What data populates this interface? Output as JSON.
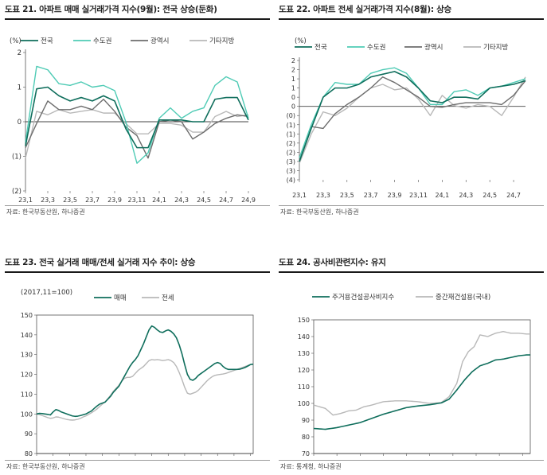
{
  "colors": {
    "green": "#0f6e5c",
    "mint": "#4fcbb5",
    "darkgray": "#6d6d6d",
    "lightgray": "#b8b8b8"
  },
  "chart_data": [
    {
      "id": "c21",
      "type": "line",
      "title": "도표 21. 아파트 매매 실거래가격 지수(9월): 전국 상승(둔화)",
      "unit_label": "(%)",
      "source": "자료: 한국부동산원, 하나증권",
      "ylim": [
        -2,
        2
      ],
      "yticks": [
        2,
        1,
        0,
        -1,
        -2
      ],
      "ytick_labels": [
        "2",
        "1",
        "0",
        "(1)",
        "(2)"
      ],
      "x_count": 21,
      "xtick_labels": [
        {
          "i": 0,
          "label": "23,1"
        },
        {
          "i": 2,
          "label": "23,3"
        },
        {
          "i": 4,
          "label": "23,5"
        },
        {
          "i": 6,
          "label": "23,7"
        },
        {
          "i": 8,
          "label": "23,9"
        },
        {
          "i": 10,
          "label": "23,11"
        },
        {
          "i": 12,
          "label": "24,1"
        },
        {
          "i": 14,
          "label": "24,3"
        },
        {
          "i": 16,
          "label": "24,5"
        },
        {
          "i": 18,
          "label": "24,7"
        },
        {
          "i": 20,
          "label": "24,9"
        }
      ],
      "series": [
        {
          "name": "전국",
          "color": "#0f6e5c",
          "values": [
            -0.7,
            0.95,
            1.0,
            0.75,
            0.6,
            0.7,
            0.6,
            0.75,
            0.6,
            -0.2,
            -0.75,
            -0.75,
            0.05,
            0.05,
            0.05,
            0.0,
            0.0,
            0.65,
            0.7,
            0.7,
            0.05
          ]
        },
        {
          "name": "수도권",
          "color": "#4fcbb5",
          "values": [
            -0.6,
            1.6,
            1.5,
            1.1,
            1.05,
            1.15,
            1.0,
            1.05,
            0.9,
            0.0,
            -1.2,
            -0.9,
            0.1,
            0.4,
            0.1,
            0.3,
            0.4,
            1.05,
            1.3,
            1.15,
            0.1
          ]
        },
        {
          "name": "광역시",
          "color": "#6d6d6d",
          "values": [
            -0.75,
            -0.05,
            0.6,
            0.35,
            0.35,
            0.45,
            0.35,
            0.65,
            0.3,
            -0.15,
            -0.4,
            -1.05,
            0.0,
            0.05,
            0.0,
            -0.5,
            -0.3,
            -0.05,
            0.1,
            0.2,
            0.15
          ]
        },
        {
          "name": "기타지방",
          "color": "#b8b8b8",
          "values": [
            -1.05,
            0.3,
            0.2,
            0.35,
            0.25,
            0.3,
            0.35,
            0.25,
            0.25,
            -0.05,
            -0.35,
            -0.35,
            -0.05,
            -0.05,
            -0.1,
            -0.3,
            -0.3,
            0.15,
            0.3,
            0.15,
            0.2
          ]
        }
      ]
    },
    {
      "id": "c22",
      "type": "line",
      "title": "도표 22. 아파트 전세 실거래가격 지수(8월): 상승",
      "unit_label": "(%)",
      "source": "자료: 한국부동산원, 하나증권",
      "ylim": [
        -4,
        2.5
      ],
      "yticks": [
        2.5,
        2,
        1.5,
        1,
        0.5,
        0,
        -0.5,
        -1,
        -1.5,
        -2,
        -2.5,
        -3,
        -3.5,
        -4
      ],
      "ytick_labels": [
        "2",
        "2",
        "1",
        "1",
        "0",
        "0",
        "(0)",
        "(1)",
        "(1)",
        "(2)",
        "(2)",
        "(3)",
        "(3)",
        "(4)"
      ],
      "x_count": 20,
      "xtick_labels": [
        {
          "i": 0,
          "label": "23,1"
        },
        {
          "i": 2,
          "label": "23,3"
        },
        {
          "i": 4,
          "label": "23,5"
        },
        {
          "i": 6,
          "label": "23,7"
        },
        {
          "i": 8,
          "label": "23,9"
        },
        {
          "i": 10,
          "label": "23,11"
        },
        {
          "i": 12,
          "label": "24,1"
        },
        {
          "i": 14,
          "label": "24,3"
        },
        {
          "i": 16,
          "label": "24,5"
        },
        {
          "i": 18,
          "label": "24,7"
        }
      ],
      "series": [
        {
          "name": "전국",
          "color": "#0f6e5c",
          "values": [
            -3.0,
            -1.2,
            0.5,
            1.0,
            1.0,
            1.2,
            1.6,
            1.75,
            1.9,
            1.6,
            1.0,
            0.3,
            0.2,
            0.5,
            0.5,
            0.4,
            1.0,
            1.1,
            1.2,
            1.4
          ]
        },
        {
          "name": "수도권",
          "color": "#4fcbb5",
          "values": [
            -2.8,
            -1.0,
            0.5,
            1.3,
            1.2,
            1.2,
            1.8,
            2.0,
            2.1,
            1.8,
            1.0,
            0.1,
            0.1,
            0.8,
            0.9,
            0.6,
            1.0,
            1.1,
            1.3,
            1.5
          ]
        },
        {
          "name": "광역시",
          "color": "#6d6d6d",
          "values": [
            -3.0,
            -1.1,
            -1.2,
            -0.4,
            0.1,
            0.5,
            1.0,
            1.6,
            1.3,
            0.9,
            0.5,
            0.0,
            -0.05,
            0.1,
            0.2,
            0.2,
            0.2,
            0.1,
            0.6,
            1.4
          ]
        },
        {
          "name": "기타지방",
          "color": "#b8b8b8",
          "values": [
            -3.1,
            -1.5,
            -0.3,
            -0.5,
            -0.1,
            0.5,
            1.0,
            1.2,
            0.9,
            1.0,
            0.4,
            -0.5,
            0.6,
            0.05,
            -0.1,
            0.1,
            0.0,
            -0.5,
            0.5,
            1.6
          ]
        }
      ]
    },
    {
      "id": "c23",
      "type": "line",
      "title": "도표 23. 전국 실거래 매매/전세 실거래 지수 추이: 상승",
      "unit_label": "(2017,11=100)",
      "source": "자료: 한국부동산원, 하나증권",
      "ylim": [
        80,
        150
      ],
      "yticks": [
        150,
        140,
        130,
        120,
        110,
        100,
        90,
        80
      ],
      "ytick_labels": [
        "150",
        "140",
        "130",
        "120",
        "110",
        "100",
        "90",
        "80"
      ],
      "x_count": 80,
      "xtick_labels": [
        {
          "i": 0,
          "label": "18,1"
        },
        {
          "i": 6,
          "label": "18,7"
        },
        {
          "i": 12,
          "label": "19,1"
        },
        {
          "i": 18,
          "label": "19,7"
        },
        {
          "i": 24,
          "label": "20,1"
        },
        {
          "i": 30,
          "label": "20,7"
        },
        {
          "i": 36,
          "label": "21,1"
        },
        {
          "i": 42,
          "label": "21,7"
        },
        {
          "i": 48,
          "label": "22,1"
        },
        {
          "i": 54,
          "label": "22,7"
        },
        {
          "i": 60,
          "label": "23,1"
        },
        {
          "i": 66,
          "label": "23,7"
        },
        {
          "i": 72,
          "label": "24,1"
        },
        {
          "i": 78,
          "label": "24,7"
        }
      ],
      "series": [
        {
          "name": "매매",
          "color": "#0f6e5c",
          "values": [
            100.0,
            100.3,
            100.2,
            100.0,
            99.8,
            99.5,
            101.0,
            102.2,
            101.8,
            101.0,
            100.5,
            100.0,
            99.5,
            99.0,
            98.8,
            98.9,
            99.2,
            99.6,
            100.0,
            100.8,
            101.5,
            102.8,
            104.0,
            105.0,
            105.5,
            106.0,
            107.5,
            109.0,
            111.0,
            112.5,
            114.0,
            116.5,
            119.0,
            121.5,
            124.0,
            126.0,
            127.5,
            129.5,
            132.5,
            135.5,
            139.0,
            142.5,
            144.5,
            143.8,
            142.5,
            141.5,
            141.2,
            142.0,
            142.5,
            141.8,
            140.5,
            138.5,
            135.0,
            130.5,
            125.0,
            120.0,
            117.5,
            117.0,
            118.0,
            119.5,
            120.5,
            121.5,
            122.5,
            123.5,
            124.5,
            125.5,
            126.0,
            125.5,
            124.0,
            123.0,
            122.5,
            122.5,
            122.5,
            122.5,
            122.6,
            123.0,
            123.5,
            124.2,
            125.0,
            125.2
          ]
        },
        {
          "name": "전세",
          "color": "#b8b8b8",
          "values": [
            100.0,
            99.7,
            99.2,
            98.7,
            98.2,
            97.8,
            98.0,
            98.5,
            98.4,
            98.0,
            97.6,
            97.2,
            97.0,
            96.9,
            97.0,
            97.3,
            97.8,
            98.5,
            99.0,
            99.8,
            100.6,
            101.5,
            102.5,
            103.8,
            105.0,
            106.2,
            107.8,
            109.5,
            111.5,
            113.0,
            114.5,
            116.5,
            118.0,
            118.5,
            118.5,
            119.0,
            120.5,
            122.0,
            123.0,
            124.0,
            125.5,
            127.0,
            127.5,
            127.3,
            127.5,
            127.3,
            127.0,
            127.2,
            127.5,
            127.0,
            126.0,
            124.0,
            121.0,
            117.5,
            113.5,
            110.5,
            110.0,
            110.5,
            111.0,
            112.0,
            113.5,
            115.0,
            116.5,
            117.8,
            118.8,
            119.5,
            119.8,
            120.0,
            120.2,
            120.5,
            121.0,
            121.5,
            122.0,
            122.5,
            123.0,
            123.5,
            124.0,
            124.5,
            125.0,
            125.2
          ]
        }
      ]
    },
    {
      "id": "c24",
      "type": "line",
      "title": "도표 24. 공사비관련지수: 유지",
      "unit_label": "",
      "source": "자료: 통계청, 하나증권",
      "ylim": [
        70,
        150
      ],
      "yticks": [
        150,
        140,
        130,
        120,
        110,
        100,
        90,
        80,
        70
      ],
      "ytick_labels": [
        "150",
        "140",
        "130",
        "120",
        "110",
        "100",
        "90",
        "80",
        "70"
      ],
      "x_count": 113,
      "xtick_labels": [
        {
          "i": 0,
          "label": "15,1"
        },
        {
          "i": 12,
          "label": "16,1"
        },
        {
          "i": 24,
          "label": "17,1"
        },
        {
          "i": 36,
          "label": "18,1"
        },
        {
          "i": 48,
          "label": "19,1"
        },
        {
          "i": 60,
          "label": "20,1"
        },
        {
          "i": 72,
          "label": "21,1"
        },
        {
          "i": 84,
          "label": "22,1"
        },
        {
          "i": 96,
          "label": "23,1"
        },
        {
          "i": 108,
          "label": "24,1"
        }
      ],
      "series": [
        {
          "name": "주거용건설공사비지수",
          "color": "#0f6e5c",
          "keypoints": [
            [
              0,
              85
            ],
            [
              6,
              84.5
            ],
            [
              12,
              85.5
            ],
            [
              18,
              87
            ],
            [
              24,
              88.5
            ],
            [
              30,
              91
            ],
            [
              36,
              93.5
            ],
            [
              42,
              95.5
            ],
            [
              48,
              97.5
            ],
            [
              54,
              98.5
            ],
            [
              60,
              99.2
            ],
            [
              66,
              100.3
            ],
            [
              70,
              102.5
            ],
            [
              74,
              108
            ],
            [
              78,
              114
            ],
            [
              82,
              119
            ],
            [
              86,
              122.5
            ],
            [
              90,
              124
            ],
            [
              94,
              126
            ],
            [
              98,
              126.5
            ],
            [
              102,
              127.5
            ],
            [
              106,
              128.5
            ],
            [
              110,
              129
            ],
            [
              112,
              129
            ]
          ]
        },
        {
          "name": "중간재건설용(국내)",
          "color": "#b8b8b8",
          "keypoints": [
            [
              0,
              99
            ],
            [
              6,
              97
            ],
            [
              10,
              93
            ],
            [
              14,
              94
            ],
            [
              18,
              95.5
            ],
            [
              22,
              96
            ],
            [
              26,
              98
            ],
            [
              30,
              99
            ],
            [
              36,
              101
            ],
            [
              42,
              101.5
            ],
            [
              48,
              101.5
            ],
            [
              54,
              101
            ],
            [
              60,
              100
            ],
            [
              66,
              100.5
            ],
            [
              70,
              104
            ],
            [
              74,
              112
            ],
            [
              77,
              125
            ],
            [
              80,
              131
            ],
            [
              83,
              134
            ],
            [
              86,
              141
            ],
            [
              90,
              140
            ],
            [
              94,
              142
            ],
            [
              98,
              143
            ],
            [
              102,
              142
            ],
            [
              106,
              142
            ],
            [
              110,
              141.5
            ],
            [
              112,
              141.5
            ]
          ]
        }
      ]
    }
  ]
}
